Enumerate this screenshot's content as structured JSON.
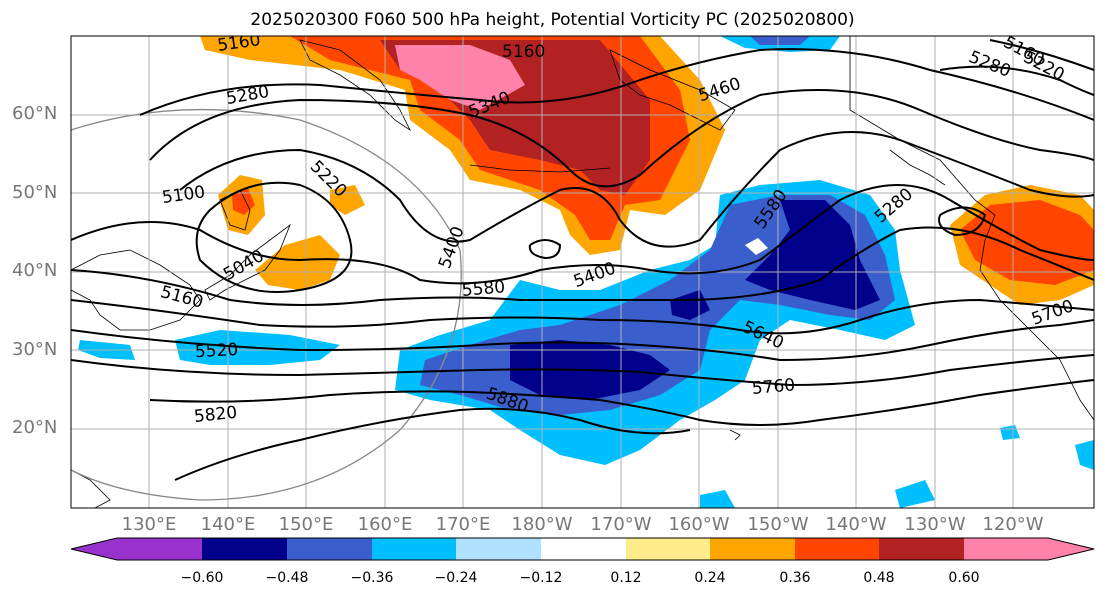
{
  "title": "2025020300 F060 500 hPa height, Potential Vorticity PC (2025020800)",
  "lat_labels": [
    "60°N",
    "50°N",
    "40°N",
    "30°N",
    "20°N"
  ],
  "lon_labels": [
    "130°E",
    "140°E",
    "150°E",
    "160°E",
    "170°E",
    "180°W",
    "170°W",
    "160°W",
    "150°W",
    "140°W",
    "130°W",
    "120°W"
  ],
  "contour_labels": [
    "5160",
    "5160",
    "5280",
    "5340",
    "5460",
    "5160",
    "5220",
    "5280",
    "5100",
    "5220",
    "5040",
    "5280",
    "5400",
    "5580",
    "5400",
    "5160",
    "5580",
    "5520",
    "5640",
    "5760",
    "5700",
    "5820",
    "5880"
  ],
  "colorbar": {
    "ticks": [
      "−0.60",
      "−0.48",
      "−0.36",
      "−0.24",
      "−0.12",
      "0.12",
      "0.24",
      "0.36",
      "0.48",
      "0.60"
    ],
    "colors": [
      "#9932cc",
      "#00008b",
      "#3a5fcd",
      "#00bfff",
      "#b0e2ff",
      "#ffffff",
      "#ffec8b",
      "#ffa500",
      "#ff4500",
      "#b22222",
      "#ff82ab"
    ]
  }
}
